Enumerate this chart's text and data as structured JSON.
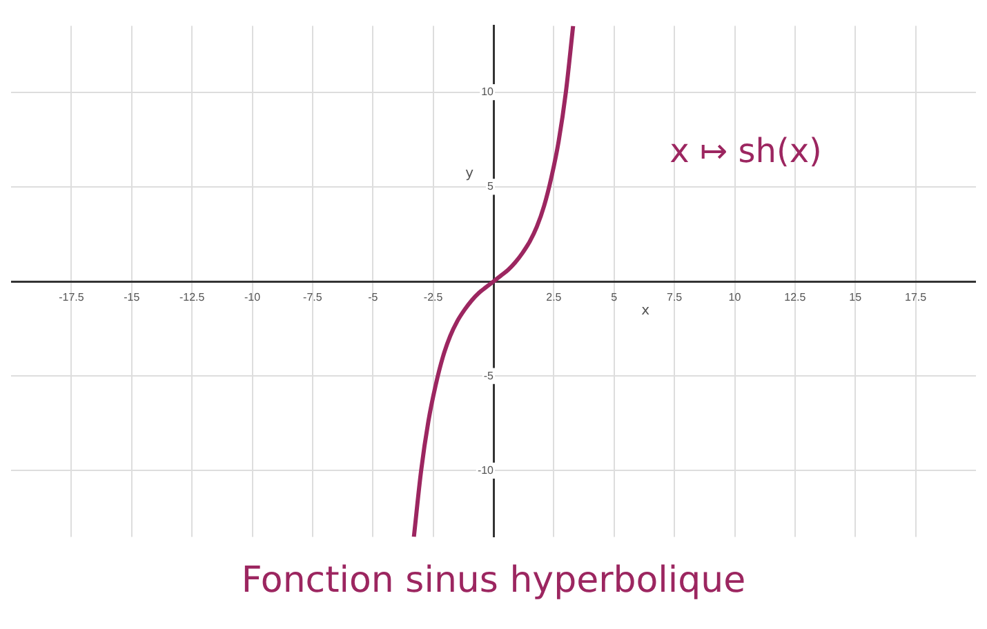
{
  "chart_data": {
    "type": "line",
    "title": "Fonction sinus hyperbolique",
    "xlabel": "x",
    "ylabel": "y",
    "xlim": [
      -20,
      20
    ],
    "ylim": [
      -13.5,
      13.5
    ],
    "xticks": [
      -17.5,
      -15,
      -12.5,
      -10,
      -7.5,
      -5,
      -2.5,
      2.5,
      5,
      7.5,
      10,
      12.5,
      15,
      17.5
    ],
    "yticks": [
      -10,
      -5,
      5,
      10
    ],
    "grid": true,
    "legend": false,
    "marker": "none",
    "line_style": "solid",
    "series": [
      {
        "name": "x ↦ sh(x)",
        "color": "#9c2660",
        "x": [
          -3.3,
          -3,
          -2.7,
          -2.4,
          -2.1,
          -1.8,
          -1.5,
          -1.2,
          -0.9,
          -0.6,
          -0.3,
          0,
          0.3,
          0.6,
          0.9,
          1.2,
          1.5,
          1.8,
          2.1,
          2.4,
          2.7,
          3,
          3.3
        ],
        "values": [
          -13.5,
          -10,
          -7.4,
          -5.5,
          -4,
          -2.9,
          -2.1,
          -1.5,
          -1,
          -0.6,
          -0.3,
          0,
          0.3,
          0.6,
          1,
          1.5,
          2.1,
          2.9,
          4,
          5.5,
          7.4,
          10,
          13.5
        ]
      }
    ]
  }
}
